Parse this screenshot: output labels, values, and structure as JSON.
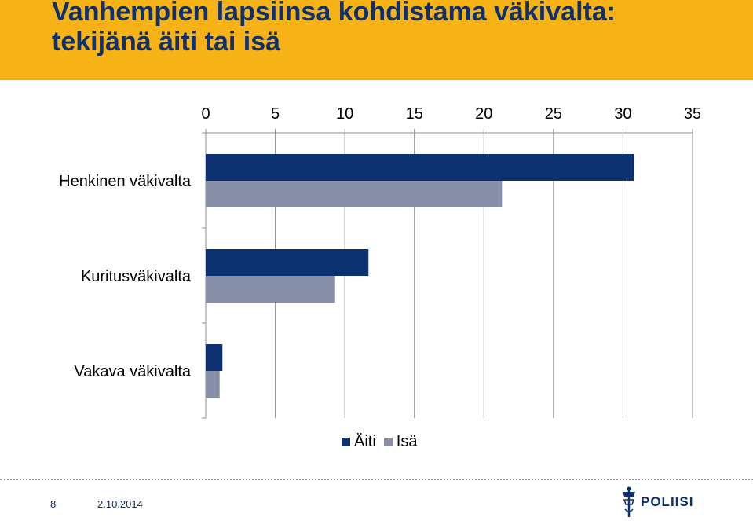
{
  "slide": {
    "title_line1": "Vanhempien lapsiinsa kohdistama väkivalta:",
    "title_line2": "tekijänä äiti tai isä",
    "page_number": "8",
    "date": "2.10.2014",
    "logo_text": "POLIISI",
    "colors": {
      "header": "#f7b215",
      "title": "#0d3070"
    }
  },
  "chart_data": {
    "type": "bar",
    "orientation": "horizontal",
    "categories": [
      "Henkinen väkivalta",
      "Kuritusväkivalta",
      "Vakava väkivalta"
    ],
    "series": [
      {
        "name": "Äiti",
        "color": "#0d3070",
        "values": [
          30.8,
          11.7,
          1.2
        ]
      },
      {
        "name": "Isä",
        "color": "#878ea8",
        "values": [
          21.3,
          9.3,
          1.0
        ]
      }
    ],
    "xlim": [
      0,
      35
    ],
    "xticks": [
      0,
      5,
      10,
      15,
      20,
      25,
      30,
      35
    ],
    "x_axis_position": "top",
    "grid": true,
    "legend": "bottom"
  }
}
